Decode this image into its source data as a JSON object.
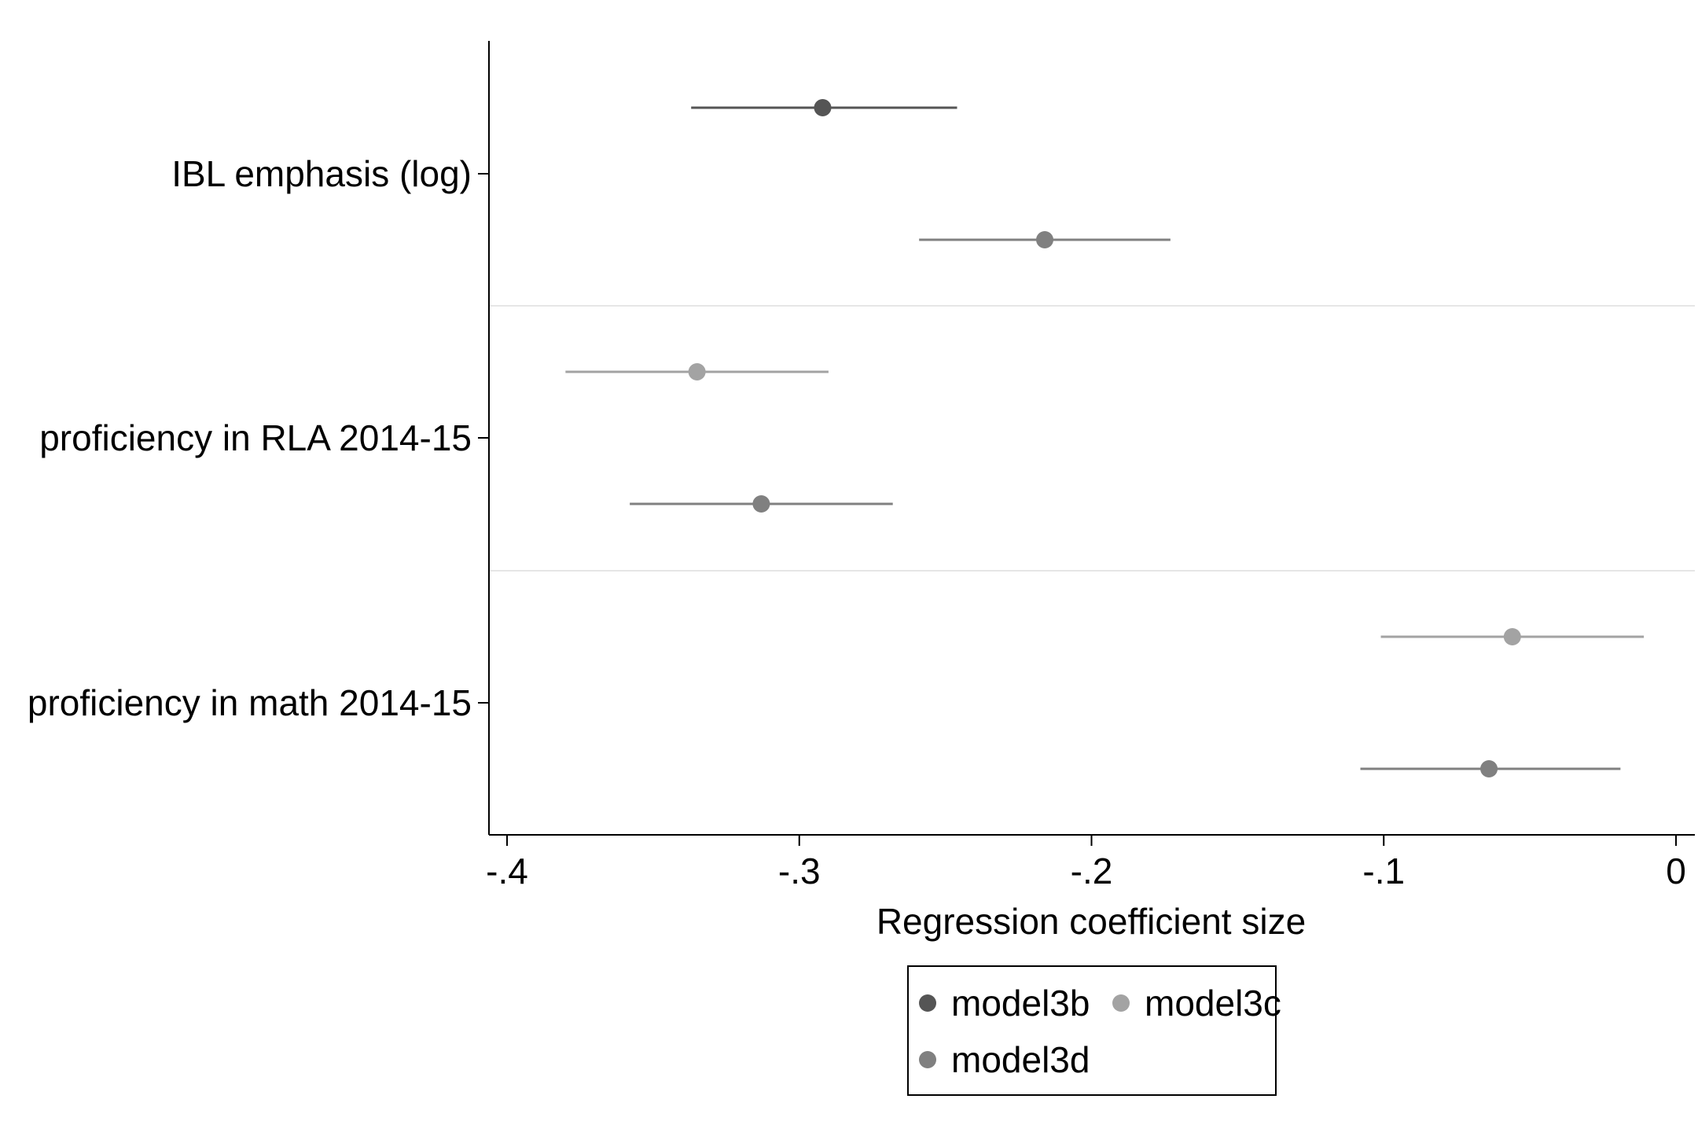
{
  "chart_data": {
    "type": "scatter",
    "subtype": "coefficient-plot",
    "title": "",
    "xlabel": "Regression coefficient size",
    "ylabel": "",
    "xlim": [
      -0.405,
      0.003
    ],
    "x_ticks": [
      -0.4,
      -0.3,
      -0.2,
      -0.1,
      0
    ],
    "x_tick_labels": [
      "-.4",
      "-.3",
      "-.2",
      "-.1",
      "0"
    ],
    "categories": [
      "IBL emphasis (log)",
      "proficiency in RLA 2014-15",
      "proficiency in math 2014-15"
    ],
    "grid": "horizontal separators between categories",
    "legend": {
      "position": "bottom",
      "columns": 2,
      "framed": true
    },
    "series": [
      {
        "name": "model3b",
        "color": "#555555",
        "points": [
          {
            "category": "IBL emphasis (log)",
            "estimate": -0.292,
            "ci": [
              -0.337,
              -0.246
            ]
          }
        ]
      },
      {
        "name": "model3c",
        "color": "#a3a3a3",
        "points": [
          {
            "category": "proficiency in RLA 2014-15",
            "estimate": -0.335,
            "ci": [
              -0.38,
              -0.29
            ]
          },
          {
            "category": "proficiency in math 2014-15",
            "estimate": -0.056,
            "ci": [
              -0.101,
              -0.011
            ]
          }
        ]
      },
      {
        "name": "model3d",
        "color": "#808080",
        "points": [
          {
            "category": "IBL emphasis (log)",
            "estimate": -0.216,
            "ci": [
              -0.259,
              -0.173
            ]
          },
          {
            "category": "proficiency in RLA 2014-15",
            "estimate": -0.313,
            "ci": [
              -0.358,
              -0.268
            ]
          },
          {
            "category": "proficiency in math 2014-15",
            "estimate": -0.064,
            "ci": [
              -0.108,
              -0.019
            ]
          }
        ]
      }
    ]
  }
}
